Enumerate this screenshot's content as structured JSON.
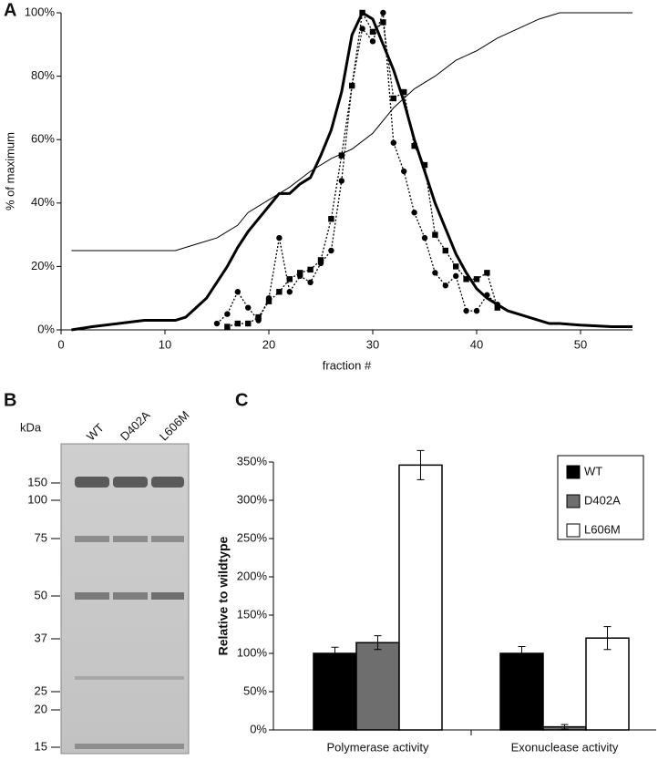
{
  "chart_data": [
    {
      "type": "line",
      "panel_label": "A",
      "x_label": "fraction #",
      "y_label": "% of maximum",
      "xlim": [
        0,
        55
      ],
      "xticks": [
        0,
        10,
        20,
        30,
        40,
        50
      ],
      "ylim": [
        0,
        100
      ],
      "yticks": [
        {
          "value": 0,
          "label": "0%"
        },
        {
          "value": 20,
          "label": "20%"
        },
        {
          "value": 40,
          "label": "40%"
        },
        {
          "value": 60,
          "label": "60%"
        },
        {
          "value": 80,
          "label": "80%"
        },
        {
          "value": 100,
          "label": "100%"
        }
      ],
      "series": [
        {
          "color": "#000000",
          "linewidth": 3,
          "marker": "none",
          "dash": false,
          "x": [
            1,
            3,
            8,
            11,
            12,
            13,
            14,
            15,
            16,
            17,
            18,
            19,
            20,
            21,
            22,
            23,
            24,
            25,
            26,
            27,
            28,
            29,
            30,
            31,
            32,
            33,
            34,
            35,
            36,
            37,
            38,
            39,
            40,
            41,
            42,
            43,
            44,
            45,
            46,
            47,
            48,
            50,
            53,
            55
          ],
          "values": [
            0,
            1,
            3,
            3,
            4,
            7,
            10,
            15,
            20,
            26,
            31,
            35,
            39,
            43,
            43,
            46,
            48,
            55,
            63,
            75,
            93,
            100,
            98,
            90,
            82,
            72,
            60,
            50,
            40,
            32,
            24,
            18,
            13,
            10,
            8,
            6,
            5,
            4,
            3,
            2,
            2,
            1.5,
            1,
            1
          ]
        },
        {
          "color": "#000000",
          "linewidth": 1,
          "marker": "none",
          "dash": false,
          "x": [
            1,
            11,
            13,
            15,
            17,
            18,
            20,
            22,
            24,
            26,
            28,
            30,
            32,
            34,
            36,
            38,
            40,
            42,
            44,
            46,
            48,
            55
          ],
          "values": [
            25,
            25,
            27,
            29,
            33,
            37,
            41,
            45,
            50,
            54,
            57,
            62,
            70,
            76,
            80,
            85,
            88,
            92,
            95,
            98,
            100,
            100
          ]
        },
        {
          "color": "#000000",
          "linewidth": 1.3,
          "marker": "circle",
          "dash": true,
          "x": [
            15,
            16,
            17,
            18,
            19,
            20,
            21,
            22,
            23,
            24,
            25,
            26,
            27,
            28,
            29,
            30,
            31,
            32,
            33,
            34,
            35,
            36,
            37,
            38,
            39,
            40,
            41,
            42
          ],
          "values": [
            2,
            5,
            12,
            7,
            3,
            10,
            29,
            12,
            17,
            15,
            21,
            25,
            47,
            77,
            95,
            91,
            100,
            59,
            50,
            37,
            29,
            18,
            14,
            17,
            6,
            6,
            11,
            8
          ]
        },
        {
          "color": "#000000",
          "linewidth": 1.3,
          "marker": "square",
          "dash": true,
          "x": [
            16,
            17,
            18,
            19,
            20,
            21,
            22,
            23,
            24,
            25,
            26,
            27,
            28,
            29,
            30,
            31,
            32,
            33,
            34,
            35,
            36,
            37,
            38,
            39,
            40,
            41,
            42
          ],
          "values": [
            1,
            2,
            2,
            4,
            9,
            12,
            16,
            18,
            19,
            22,
            35,
            55,
            77,
            100,
            94,
            97,
            73,
            75,
            58,
            52,
            30,
            25,
            20,
            16,
            16,
            18,
            7
          ]
        }
      ]
    },
    {
      "type": "bar",
      "panel_label": "C",
      "y_label": "Relative to wildtype",
      "categories": [
        "Polymerase activity",
        "Exonuclease activity"
      ],
      "ylim": [
        0,
        350
      ],
      "yticks": [
        {
          "value": 0,
          "label": "0%"
        },
        {
          "value": 50,
          "label": "50%"
        },
        {
          "value": 100,
          "label": "100%"
        },
        {
          "value": 150,
          "label": "150%"
        },
        {
          "value": 200,
          "label": "200%"
        },
        {
          "value": 250,
          "label": "250%"
        },
        {
          "value": 300,
          "label": "300%"
        },
        {
          "value": 350,
          "label": "350%"
        }
      ],
      "legend": "top-right",
      "series": [
        {
          "name": "WT",
          "color": "#000000",
          "values": [
            100,
            100
          ],
          "errors": [
            8,
            9
          ]
        },
        {
          "name": "D402A",
          "color": "#6e6e6e",
          "values": [
            114,
            4
          ],
          "errors": [
            9,
            3
          ]
        },
        {
          "name": "L606M",
          "color": "#ffffff",
          "values": [
            346,
            120
          ],
          "errors": [
            19,
            15
          ]
        }
      ]
    }
  ],
  "gel": {
    "panel_label": "B",
    "unit": "kDa",
    "lanes": [
      "WT",
      "D402A",
      "L606M"
    ],
    "markers": [
      "150",
      "100",
      "75",
      "50",
      "37",
      "25",
      "20",
      "15"
    ]
  }
}
